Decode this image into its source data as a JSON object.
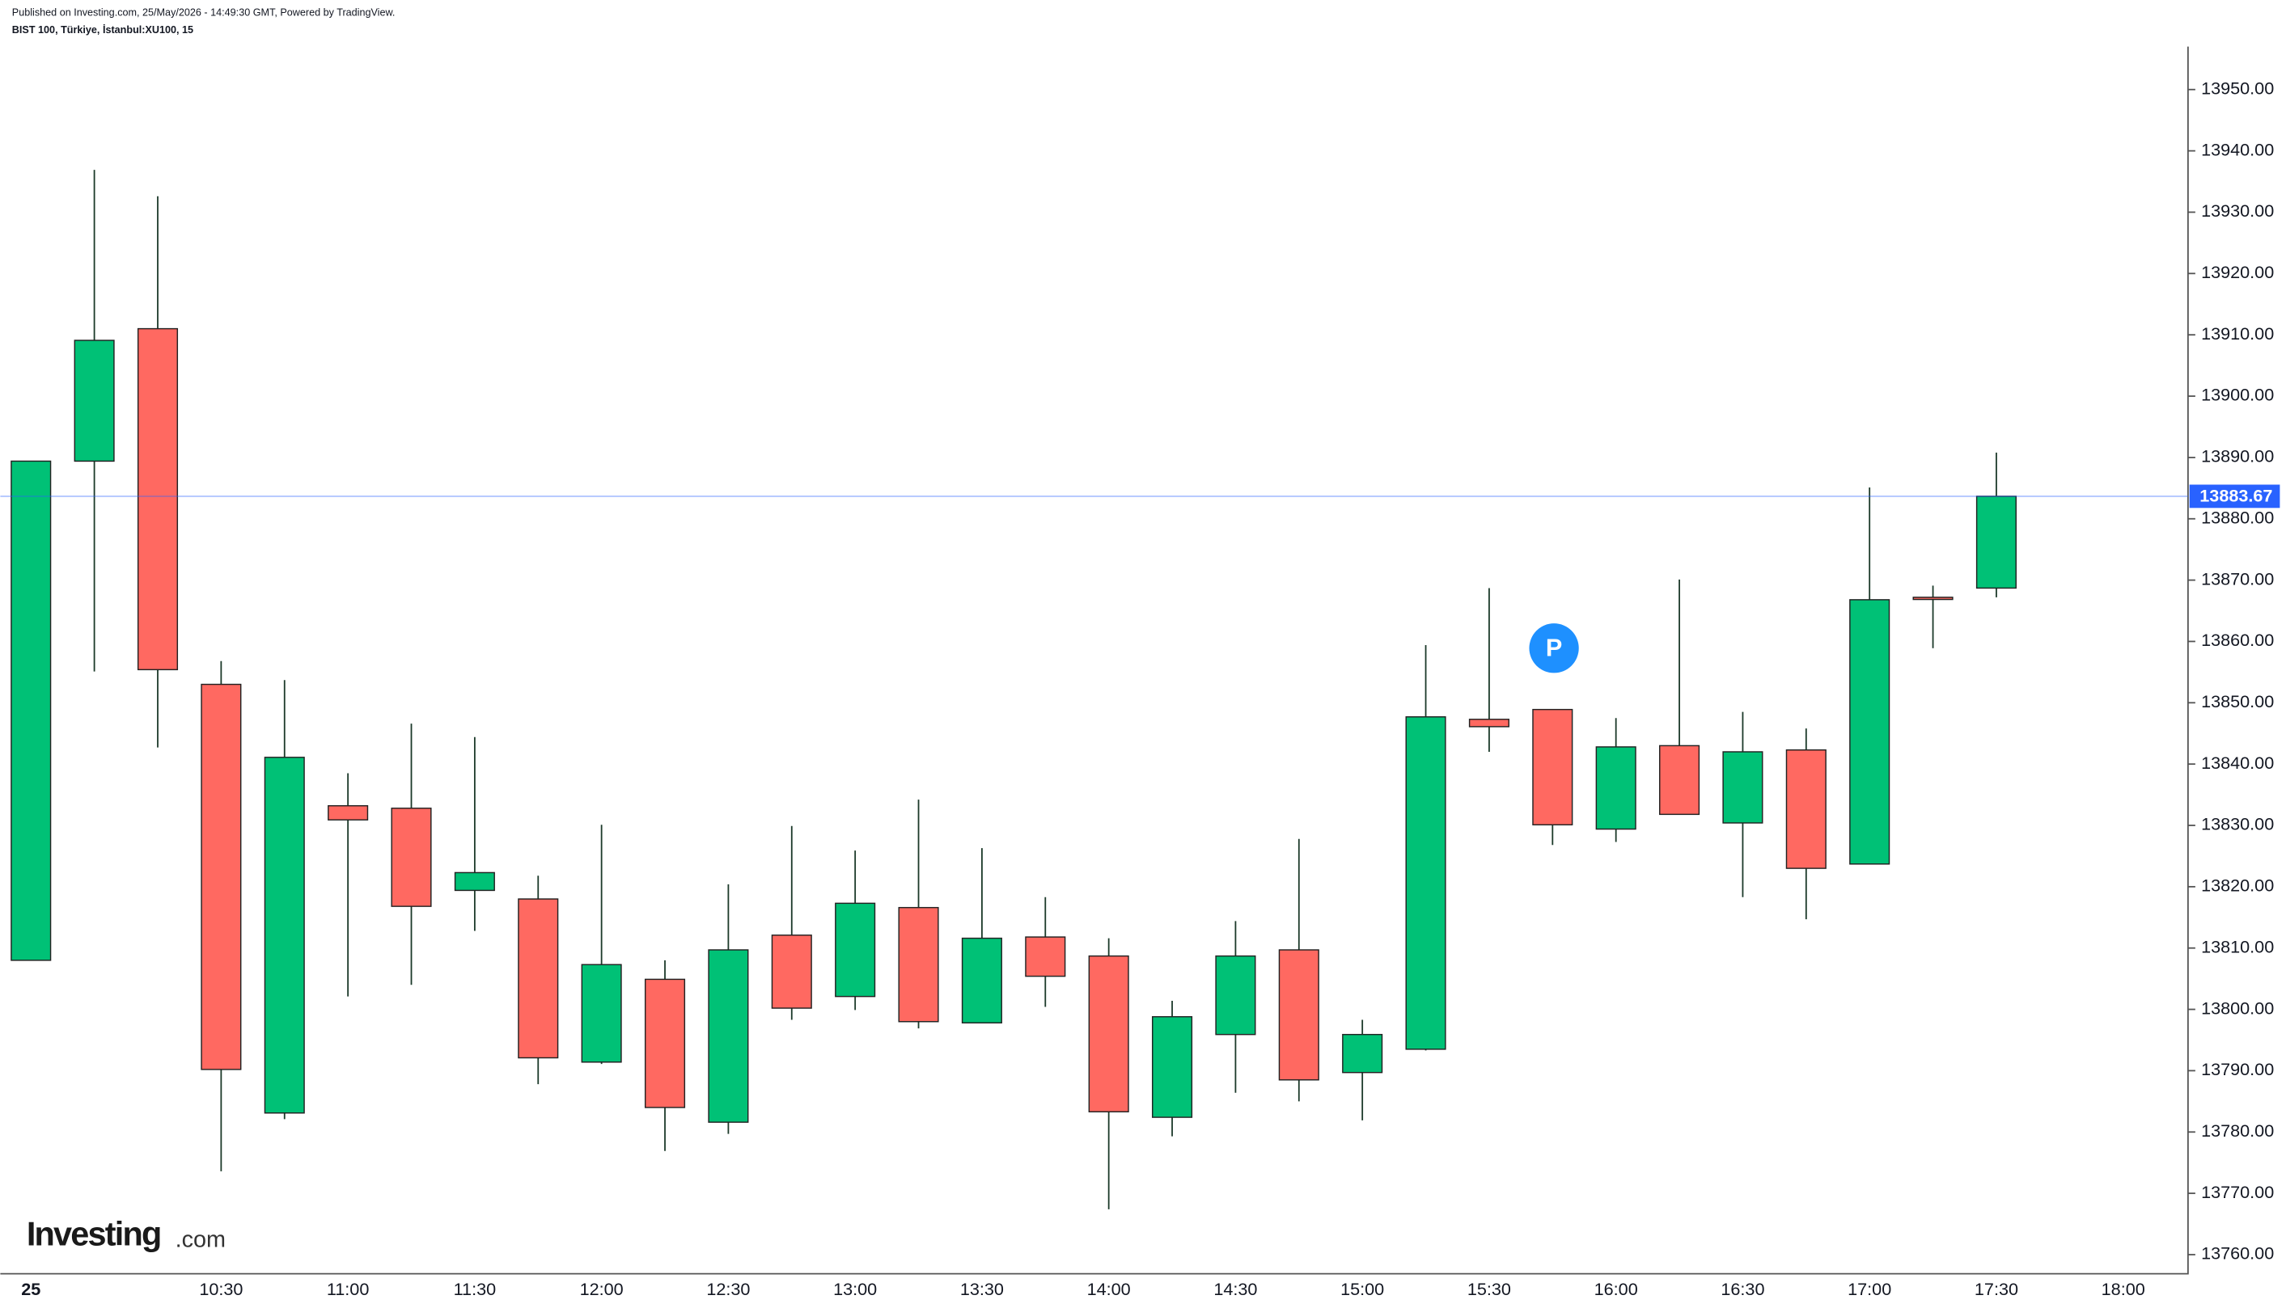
{
  "chart_data": {
    "type": "candlestick",
    "title": "Published on Investing.com, 25/May/2026 - 14:49:30 GMT, Powered by TradingView.",
    "subtitle": "BIST 100, Türkiye, İstanbul:XU100, 15",
    "logo": {
      "brand": "Investing",
      "suffix": ".com"
    },
    "annotation": "P",
    "categories": [
      "25",
      null,
      null,
      "10:30",
      null,
      "11:00",
      null,
      "11:30",
      null,
      "12:00",
      null,
      "12:30",
      null,
      "13:00",
      null,
      "13:30",
      null,
      "14:00",
      null,
      "14:30",
      null,
      "15:00",
      null,
      "15:30",
      null,
      "16:00",
      null,
      "16:30",
      null,
      "17:00",
      null,
      "17:30",
      null,
      "18:00"
    ],
    "open": [
      13808.0,
      13889.4,
      13911.0,
      13853.0,
      13783.1,
      13833.2,
      13832.8,
      13819.4,
      13818.0,
      13791.4,
      13804.9,
      13781.6,
      13812.1,
      13802.1,
      13816.6,
      13797.8,
      13811.8,
      13808.7,
      13782.4,
      13795.9,
      13809.7,
      13789.7,
      13793.5,
      13847.3,
      13848.9,
      13829.4,
      13843.0,
      13830.4,
      13842.3,
      13823.7,
      13867.2,
      13868.7,
      null,
      null
    ],
    "high": [
      13889.4,
      13936.9,
      13932.6,
      13856.8,
      13853.7,
      13838.5,
      13846.6,
      13844.4,
      13821.8,
      13830.1,
      13808.0,
      13820.4,
      13829.9,
      13825.9,
      13834.2,
      13826.3,
      13818.3,
      13811.6,
      13801.4,
      13814.4,
      13827.8,
      13798.3,
      13859.4,
      13868.7,
      13848.9,
      13847.5,
      13870.1,
      13848.5,
      13845.8,
      13885.1,
      13869.1,
      13890.8,
      null,
      null
    ],
    "low": [
      13808.0,
      13855.1,
      13842.7,
      13773.6,
      13782.1,
      13802.1,
      13804.0,
      13812.8,
      13787.8,
      13791.1,
      13776.9,
      13779.7,
      13798.3,
      13799.9,
      13796.9,
      13797.8,
      13800.4,
      13767.4,
      13779.3,
      13786.4,
      13785.0,
      13781.9,
      13793.3,
      13842.0,
      13826.8,
      13827.3,
      13831.8,
      13818.3,
      13814.7,
      13823.7,
      13858.9,
      13867.2,
      null,
      null
    ],
    "close": [
      13889.4,
      13909.1,
      13855.4,
      13790.2,
      13841.1,
      13830.9,
      13816.8,
      13822.3,
      13792.1,
      13807.3,
      13784.0,
      13809.7,
      13800.2,
      13817.3,
      13798.0,
      13811.6,
      13805.4,
      13783.3,
      13798.8,
      13808.7,
      13788.5,
      13795.9,
      13847.7,
      13846.1,
      13830.1,
      13842.8,
      13831.8,
      13842.0,
      13823.0,
      13866.8,
      13866.9,
      13883.67,
      null,
      null
    ],
    "up_color": "#00c176",
    "down_color": "#ff6961",
    "last_price": {
      "value": 13883.67,
      "label": "13883.67"
    },
    "last_price_color": "#2962ff",
    "ylim": [
      13757,
      13957
    ],
    "yticks": [
      {
        "value": 13760,
        "label": "13760.00"
      },
      {
        "value": 13770,
        "label": "13770.00"
      },
      {
        "value": 13780,
        "label": "13780.00"
      },
      {
        "value": 13790,
        "label": "13790.00"
      },
      {
        "value": 13800,
        "label": "13800.00"
      },
      {
        "value": 13810,
        "label": "13810.00"
      },
      {
        "value": 13820,
        "label": "13820.00"
      },
      {
        "value": 13830,
        "label": "13830.00"
      },
      {
        "value": 13840,
        "label": "13840.00"
      },
      {
        "value": 13850,
        "label": "13850.00"
      },
      {
        "value": 13860,
        "label": "13860.00"
      },
      {
        "value": 13870,
        "label": "13870.00"
      },
      {
        "value": 13880,
        "label": "13880.00"
      },
      {
        "value": 13890,
        "label": "13890.00"
      },
      {
        "value": 13900,
        "label": "13900.00"
      },
      {
        "value": 13910,
        "label": "13910.00"
      },
      {
        "value": 13920,
        "label": "13920.00"
      },
      {
        "value": 13930,
        "label": "13930.00"
      },
      {
        "value": 13940,
        "label": "13940.00"
      },
      {
        "value": 13950,
        "label": "13950.00"
      }
    ],
    "grid": false
  }
}
